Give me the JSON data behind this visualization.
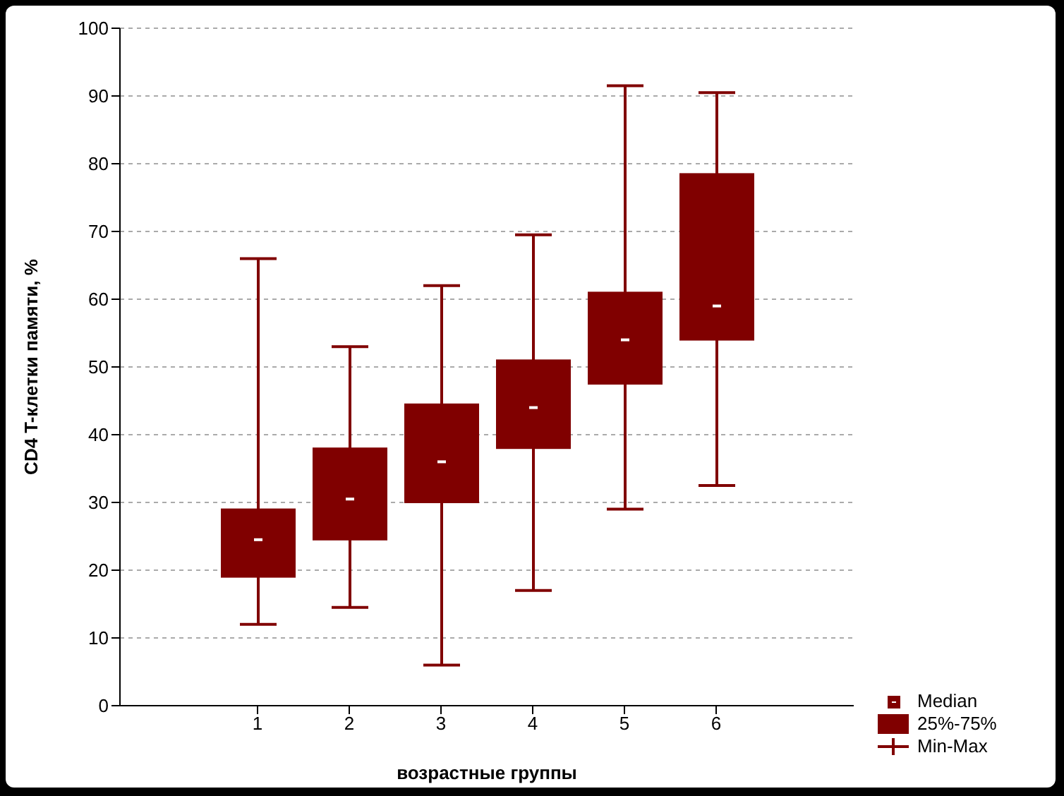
{
  "chart_data": {
    "type": "box",
    "xlabel": "возрастные группы",
    "ylabel": "CD4 T-клетки памяти, %",
    "categories": [
      "1",
      "2",
      "3",
      "4",
      "5",
      "6"
    ],
    "color": "#800000",
    "boxes": [
      {
        "low": 12,
        "q1": 19,
        "median": 24.5,
        "q3": 29,
        "high": 66
      },
      {
        "low": 14.5,
        "q1": 24.5,
        "median": 30.5,
        "q3": 38,
        "high": 53
      },
      {
        "low": 6,
        "q1": 30,
        "median": 36,
        "q3": 44.5,
        "high": 62
      },
      {
        "low": 17,
        "q1": 38,
        "median": 44,
        "q3": 51,
        "high": 69.5
      },
      {
        "low": 29,
        "q1": 47.5,
        "median": 54,
        "q3": 61,
        "high": 91.5
      },
      {
        "low": 32.5,
        "q1": 54,
        "median": 59,
        "q3": 78.5,
        "high": 90.5
      }
    ],
    "ylim": [
      0,
      100
    ],
    "yticks": [
      0,
      10,
      20,
      30,
      40,
      50,
      60,
      70,
      80,
      90,
      100
    ],
    "grid": "y",
    "annotations": [
      "Median",
      "25%-75%",
      "Min-Max"
    ]
  }
}
